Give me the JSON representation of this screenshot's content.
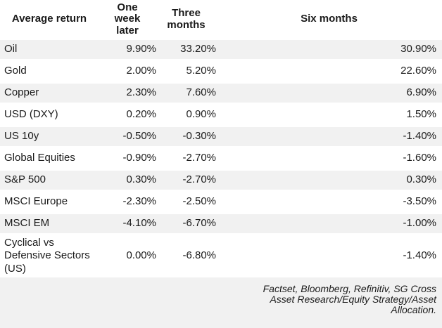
{
  "table": {
    "columns": [
      {
        "label": "Average return"
      },
      {
        "label": "One week later"
      },
      {
        "label": "Three months"
      },
      {
        "label": "Six months"
      }
    ],
    "rows": [
      {
        "label": "Oil",
        "one_week": "9.90%",
        "three_months": "33.20%",
        "six_months": "30.90%"
      },
      {
        "label": "Gold",
        "one_week": "2.00%",
        "three_months": "5.20%",
        "six_months": "22.60%"
      },
      {
        "label": "Copper",
        "one_week": "2.30%",
        "three_months": "7.60%",
        "six_months": "6.90%"
      },
      {
        "label": "USD (DXY)",
        "one_week": "0.20%",
        "three_months": "0.90%",
        "six_months": "1.50%"
      },
      {
        "label": "US 10y",
        "one_week": "-0.50%",
        "three_months": "-0.30%",
        "six_months": "-1.40%"
      },
      {
        "label": "Global Equities",
        "one_week": "-0.90%",
        "three_months": "-2.70%",
        "six_months": "-1.60%"
      },
      {
        "label": "S&P 500",
        "one_week": "0.30%",
        "three_months": "-2.70%",
        "six_months": "0.30%"
      },
      {
        "label": "MSCI Europe",
        "one_week": "-2.30%",
        "three_months": "-2.50%",
        "six_months": "-3.50%"
      },
      {
        "label": "MSCI EM",
        "one_week": "-4.10%",
        "three_months": "-6.70%",
        "six_months": "-1.00%"
      },
      {
        "label": "Cyclical vs Defensive Sectors (US)",
        "one_week": "0.00%",
        "three_months": "-6.80%",
        "six_months": "-1.40%"
      }
    ],
    "source": "Factset, Bloomberg, Refinitiv, SG Cross Asset Research/Equity Strategy/Asset Allocation."
  },
  "colors": {
    "stripe": "#f1f1f1",
    "text": "#1a1a1a",
    "background": "#ffffff"
  },
  "chart_data": {
    "type": "table",
    "title": "",
    "columns": [
      "Average return",
      "One week later",
      "Three months",
      "Six months"
    ],
    "categories": [
      "Oil",
      "Gold",
      "Copper",
      "USD (DXY)",
      "US 10y",
      "Global Equities",
      "S&P 500",
      "MSCI Europe",
      "MSCI EM",
      "Cyclical vs Defensive Sectors (US)"
    ],
    "series": [
      {
        "name": "One week later",
        "unit": "%",
        "values": [
          9.9,
          2.0,
          2.3,
          0.2,
          -0.5,
          -0.9,
          0.3,
          -2.3,
          -4.1,
          0.0
        ]
      },
      {
        "name": "Three months",
        "unit": "%",
        "values": [
          33.2,
          5.2,
          7.6,
          0.9,
          -0.3,
          -2.7,
          -2.7,
          -2.5,
          -6.7,
          -6.8
        ]
      },
      {
        "name": "Six months",
        "unit": "%",
        "values": [
          30.9,
          22.6,
          6.9,
          1.5,
          -1.4,
          -1.6,
          0.3,
          -3.5,
          -1.0,
          -1.4
        ]
      }
    ],
    "source": "Factset, Bloomberg, Refinitiv, SG Cross Asset Research/Equity Strategy/Asset Allocation.",
    "layout": "striped rows, numeric columns right-aligned, headers bold centered, source note italic right-aligned"
  }
}
